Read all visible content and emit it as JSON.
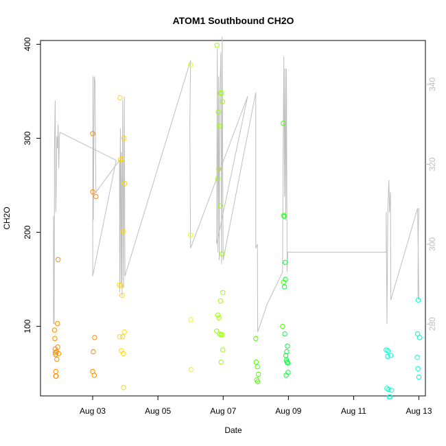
{
  "chart_data": {
    "type": "scatter",
    "title": "ATOM1 Southbound CH2O",
    "xlabel": "Date",
    "ylabel": "CH2O",
    "xlim": [
      1.4,
      13.2
    ],
    "ylim": [
      26,
      404
    ],
    "y2lim": [
      262,
      351
    ],
    "xticks": [
      {
        "value": 3,
        "label": "Aug 03"
      },
      {
        "value": 5,
        "label": "Aug 05"
      },
      {
        "value": 7,
        "label": "Aug 07"
      },
      {
        "value": 9,
        "label": "Aug 09"
      },
      {
        "value": 11,
        "label": "Aug 11"
      },
      {
        "value": 13,
        "label": "Aug 13"
      }
    ],
    "yticks": [
      100,
      200,
      300,
      400
    ],
    "y2ticks": [
      280,
      300,
      320,
      340
    ],
    "colors": {
      "line": "#bebebe",
      "axis": "#000000",
      "right_axis": "#bebebe",
      "palette": [
        "#ff8c00",
        "#ffd700",
        "#e5ff00",
        "#99ff00",
        "#4dff00",
        "#00ff33",
        "#00ff99",
        "#00ffcc"
      ]
    },
    "points": [
      [
        1.83,
        96
      ],
      [
        1.84,
        87
      ],
      [
        1.85,
        76
      ],
      [
        1.85,
        72
      ],
      [
        1.86,
        70
      ],
      [
        1.87,
        52
      ],
      [
        1.87,
        47
      ],
      [
        1.88,
        47
      ],
      [
        1.89,
        73
      ],
      [
        1.9,
        65
      ],
      [
        1.92,
        103
      ],
      [
        1.93,
        78
      ],
      [
        1.94,
        171
      ],
      [
        1.96,
        71
      ],
      [
        3.0,
        305
      ],
      [
        3.0,
        243
      ],
      [
        3.0,
        52
      ],
      [
        3.02,
        73
      ],
      [
        3.05,
        48
      ],
      [
        3.06,
        88
      ],
      [
        3.1,
        238
      ],
      [
        3.82,
        144
      ],
      [
        3.83,
        89
      ],
      [
        3.84,
        343
      ],
      [
        3.85,
        277
      ],
      [
        3.86,
        143
      ],
      [
        3.88,
        74
      ],
      [
        3.9,
        133
      ],
      [
        3.91,
        278
      ],
      [
        3.92,
        89
      ],
      [
        3.93,
        201
      ],
      [
        3.94,
        71
      ],
      [
        3.95,
        35
      ],
      [
        3.96,
        300
      ],
      [
        3.97,
        94
      ],
      [
        3.98,
        252
      ],
      [
        6.0,
        378
      ],
      [
        6.0,
        197
      ],
      [
        6.01,
        107
      ],
      [
        6.02,
        54
      ],
      [
        6.8,
        95
      ],
      [
        6.81,
        399
      ],
      [
        6.83,
        257
      ],
      [
        6.84,
        112
      ],
      [
        6.85,
        328
      ],
      [
        6.86,
        267
      ],
      [
        6.87,
        109
      ],
      [
        6.88,
        313
      ],
      [
        6.89,
        92
      ],
      [
        6.9,
        348
      ],
      [
        6.91,
        228
      ],
      [
        6.92,
        127
      ],
      [
        6.93,
        91
      ],
      [
        6.94,
        62
      ],
      [
        6.95,
        348
      ],
      [
        6.96,
        177
      ],
      [
        6.97,
        91
      ],
      [
        6.98,
        339
      ],
      [
        6.99,
        136
      ],
      [
        6.99,
        75
      ],
      [
        8.0,
        87
      ],
      [
        8.01,
        62
      ],
      [
        8.03,
        43
      ],
      [
        8.05,
        57
      ],
      [
        8.06,
        41
      ],
      [
        8.08,
        49
      ],
      [
        8.82,
        100
      ],
      [
        8.84,
        316
      ],
      [
        8.85,
        147
      ],
      [
        8.86,
        218
      ],
      [
        8.87,
        217
      ],
      [
        8.88,
        142
      ],
      [
        8.89,
        92
      ],
      [
        8.9,
        168
      ],
      [
        8.91,
        150
      ],
      [
        8.92,
        69
      ],
      [
        8.93,
        48
      ],
      [
        8.94,
        64
      ],
      [
        8.95,
        73
      ],
      [
        8.96,
        62
      ],
      [
        8.97,
        79
      ],
      [
        8.98,
        61
      ],
      [
        8.99,
        51
      ],
      [
        12.0,
        75
      ],
      [
        12.02,
        34
      ],
      [
        12.04,
        68
      ],
      [
        12.05,
        74
      ],
      [
        12.07,
        33
      ],
      [
        12.09,
        25
      ],
      [
        12.12,
        25
      ],
      [
        12.14,
        69
      ],
      [
        12.16,
        32
      ],
      [
        12.95,
        67
      ],
      [
        12.96,
        92
      ],
      [
        12.97,
        55
      ],
      [
        12.98,
        128
      ],
      [
        13.0,
        46
      ],
      [
        13.02,
        88
      ]
    ],
    "line_y2": [
      [
        1.8,
        280
      ],
      [
        1.8,
        307
      ],
      [
        1.82,
        280
      ],
      [
        1.83,
        324
      ],
      [
        1.85,
        336
      ],
      [
        1.87,
        308
      ],
      [
        1.88,
        312
      ],
      [
        1.9,
        327
      ],
      [
        1.92,
        324
      ],
      [
        1.94,
        330
      ],
      [
        1.96,
        319
      ],
      [
        1.98,
        327
      ],
      [
        2.0,
        328
      ],
      [
        3.72,
        321
      ],
      [
        3.0,
        292
      ],
      [
        3.01,
        342
      ],
      [
        3.02,
        306
      ],
      [
        3.05,
        342
      ],
      [
        3.07,
        341
      ],
      [
        3.1,
        313
      ],
      [
        3.82,
        321
      ],
      [
        3.83,
        288
      ],
      [
        3.84,
        317
      ],
      [
        3.85,
        329
      ],
      [
        3.87,
        290
      ],
      [
        3.88,
        323
      ],
      [
        3.9,
        287
      ],
      [
        3.92,
        336
      ],
      [
        3.95,
        289
      ],
      [
        3.97,
        337
      ],
      [
        3.99,
        292
      ],
      [
        6.0,
        346
      ],
      [
        5.98,
        330
      ],
      [
        6.0,
        299
      ],
      [
        7.75,
        337
      ],
      [
        6.8,
        300
      ],
      [
        6.82,
        349
      ],
      [
        6.84,
        298
      ],
      [
        6.86,
        342
      ],
      [
        6.88,
        296
      ],
      [
        6.9,
        338
      ],
      [
        6.93,
        348
      ],
      [
        6.95,
        295
      ],
      [
        6.97,
        352
      ],
      [
        7.0,
        296
      ],
      [
        8.0,
        338
      ],
      [
        8.0,
        299
      ],
      [
        8.05,
        300
      ],
      [
        8.06,
        278
      ],
      [
        8.35,
        285
      ],
      [
        8.82,
        293
      ],
      [
        8.84,
        325
      ],
      [
        8.86,
        347
      ],
      [
        8.88,
        312
      ],
      [
        8.9,
        344
      ],
      [
        8.92,
        306
      ],
      [
        8.94,
        344
      ],
      [
        8.96,
        293
      ],
      [
        8.98,
        298
      ],
      [
        12.0,
        298
      ],
      [
        12.0,
        308
      ],
      [
        12.02,
        280
      ],
      [
        12.05,
        309
      ],
      [
        12.08,
        316
      ],
      [
        12.1,
        308
      ],
      [
        12.13,
        313
      ],
      [
        12.14,
        286
      ],
      [
        12.96,
        309
      ],
      [
        13.0,
        286
      ],
      [
        12.97,
        287
      ],
      [
        12.98,
        302
      ],
      [
        13.0,
        309
      ]
    ]
  }
}
